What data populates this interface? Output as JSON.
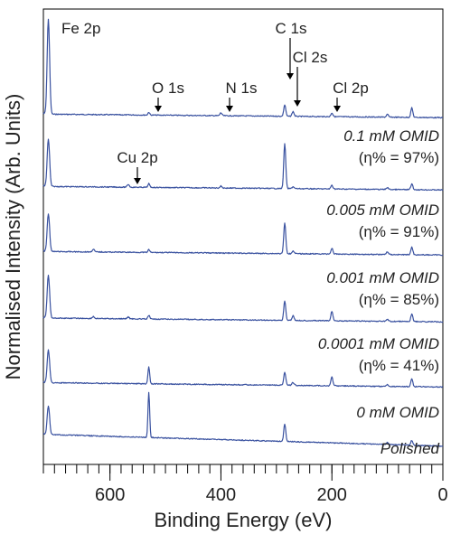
{
  "chart_data": {
    "type": "line",
    "xlabel": "Binding Energy (eV)",
    "ylabel": "Normalised Intensity (Arb. Units)",
    "xlim": [
      720,
      0
    ],
    "x_reversed": true,
    "x_ticks": [
      600,
      400,
      200,
      0
    ],
    "x_minor_step": 20,
    "y_ticks": "none",
    "grid": false,
    "line_color": "#3a52a0",
    "series": [
      {
        "label_line1": "0.1 mM OMID",
        "label_line2": "(η% = 97%)",
        "peaks": [
          {
            "x": 711,
            "h": 1.0
          },
          {
            "x": 530,
            "h": 0.03
          },
          {
            "x": 400,
            "h": 0.03
          },
          {
            "x": 285,
            "h": 0.12
          },
          {
            "x": 270,
            "h": 0.05
          },
          {
            "x": 200,
            "h": 0.04
          },
          {
            "x": 100,
            "h": 0.03
          },
          {
            "x": 56,
            "h": 0.1
          }
        ]
      },
      {
        "label_line1": "0.005 mM OMID",
        "label_line2": "(η% = 91%)",
        "peaks": [
          {
            "x": 711,
            "h": 0.5
          },
          {
            "x": 567,
            "h": 0.03
          },
          {
            "x": 530,
            "h": 0.04
          },
          {
            "x": 400,
            "h": 0.02
          },
          {
            "x": 285,
            "h": 0.47
          },
          {
            "x": 270,
            "h": 0.02
          },
          {
            "x": 200,
            "h": 0.04
          },
          {
            "x": 100,
            "h": 0.02
          },
          {
            "x": 56,
            "h": 0.06
          }
        ]
      },
      {
        "label_line1": "0.001 mM OMID",
        "label_line2": "(η% = 85%)",
        "peaks": [
          {
            "x": 711,
            "h": 0.4
          },
          {
            "x": 630,
            "h": 0.03
          },
          {
            "x": 530,
            "h": 0.03
          },
          {
            "x": 285,
            "h": 0.32
          },
          {
            "x": 270,
            "h": 0.03
          },
          {
            "x": 200,
            "h": 0.06
          },
          {
            "x": 100,
            "h": 0.03
          },
          {
            "x": 56,
            "h": 0.08
          }
        ]
      },
      {
        "label_line1": "0.0001 mM OMID",
        "label_line2": "(η% = 41%)",
        "peaks": [
          {
            "x": 711,
            "h": 0.45
          },
          {
            "x": 630,
            "h": 0.02
          },
          {
            "x": 567,
            "h": 0.02
          },
          {
            "x": 530,
            "h": 0.04
          },
          {
            "x": 285,
            "h": 0.2
          },
          {
            "x": 270,
            "h": 0.05
          },
          {
            "x": 200,
            "h": 0.1
          },
          {
            "x": 100,
            "h": 0.02
          },
          {
            "x": 56,
            "h": 0.08
          }
        ]
      },
      {
        "label_line1": "0 mM OMID",
        "label_line2": "",
        "peaks": [
          {
            "x": 711,
            "h": 0.35
          },
          {
            "x": 530,
            "h": 0.18
          },
          {
            "x": 285,
            "h": 0.14
          },
          {
            "x": 270,
            "h": 0.03
          },
          {
            "x": 200,
            "h": 0.09
          },
          {
            "x": 100,
            "h": 0.02
          },
          {
            "x": 56,
            "h": 0.08
          }
        ]
      },
      {
        "label_line1": "Polished",
        "label_line2": "",
        "peaks": [
          {
            "x": 711,
            "h": 0.3
          },
          {
            "x": 530,
            "h": 0.47
          },
          {
            "x": 285,
            "h": 0.18
          },
          {
            "x": 100,
            "h": 0.02
          },
          {
            "x": 56,
            "h": 0.05
          }
        ]
      }
    ],
    "peak_annotations": [
      {
        "label": "Fe 2p",
        "x": 711
      },
      {
        "label": "O 1s",
        "x": 530,
        "arrow": true
      },
      {
        "label": "N 1s",
        "x": 400,
        "arrow": true
      },
      {
        "label": "C 1s",
        "x": 285,
        "arrow": true
      },
      {
        "label": "Cl 2s",
        "x": 270,
        "arrow": true
      },
      {
        "label": "Cl 2p",
        "x": 200,
        "arrow": true
      },
      {
        "label": "Cu 2p",
        "x": 567,
        "arrow": true
      }
    ]
  }
}
